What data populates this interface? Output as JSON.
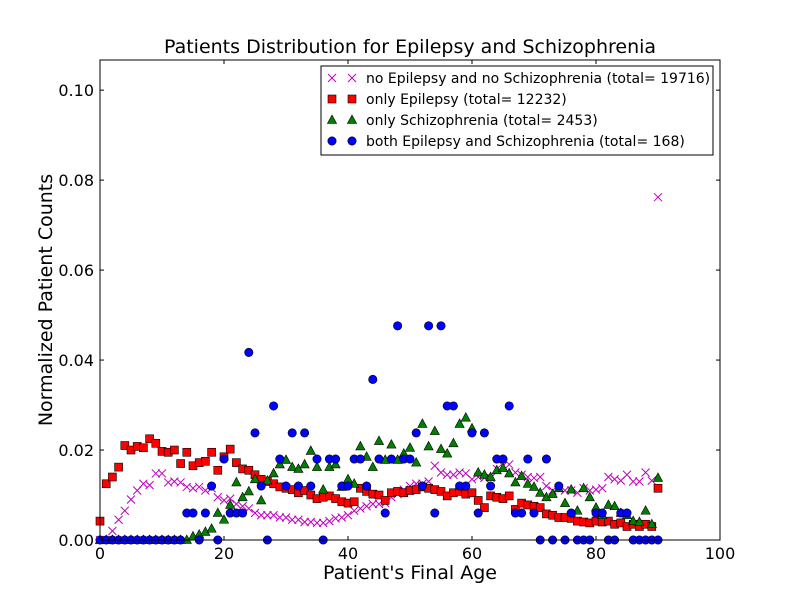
{
  "chart_data": {
    "type": "scatter",
    "title": "Patients Distribution for Epilepsy and Schizophrenia",
    "xlabel": "Patient's Final Age",
    "ylabel": "Normalized Patient Counts",
    "xlim": [
      0,
      100
    ],
    "ylim": [
      0,
      0.1067
    ],
    "xticks": [
      "0",
      "20",
      "40",
      "60",
      "80",
      "100"
    ],
    "yticks": [
      "0.00",
      "0.02",
      "0.04",
      "0.06",
      "0.08",
      "0.10"
    ],
    "legend_position": "top-right",
    "series": [
      {
        "name": "no Epilepsy and no Schizophrenia (total= 19716)",
        "marker": "x",
        "color": "#bf00bf",
        "x": [
          0,
          1,
          2,
          3,
          4,
          5,
          6,
          7,
          8,
          9,
          10,
          11,
          12,
          13,
          14,
          15,
          16,
          17,
          18,
          19,
          20,
          21,
          22,
          23,
          24,
          25,
          26,
          27,
          28,
          29,
          30,
          31,
          32,
          33,
          34,
          35,
          36,
          37,
          38,
          39,
          40,
          41,
          42,
          43,
          44,
          45,
          46,
          47,
          48,
          49,
          50,
          51,
          52,
          53,
          54,
          55,
          56,
          57,
          58,
          59,
          60,
          61,
          62,
          63,
          64,
          65,
          66,
          67,
          68,
          69,
          70,
          71,
          72,
          73,
          74,
          75,
          76,
          77,
          78,
          79,
          80,
          81,
          82,
          83,
          84,
          85,
          86,
          87,
          88,
          89,
          90
        ],
        "y": [
          0.0,
          0.0,
          0.002,
          0.0045,
          0.0065,
          0.009,
          0.011,
          0.0125,
          0.0122,
          0.0148,
          0.0148,
          0.0128,
          0.013,
          0.0128,
          0.0118,
          0.0115,
          0.0118,
          0.011,
          0.0115,
          0.0095,
          0.0088,
          0.0092,
          0.008,
          0.0075,
          0.007,
          0.006,
          0.0055,
          0.0055,
          0.0055,
          0.005,
          0.005,
          0.0045,
          0.0045,
          0.004,
          0.004,
          0.0038,
          0.0038,
          0.0042,
          0.0048,
          0.005,
          0.0055,
          0.0065,
          0.007,
          0.0075,
          0.008,
          0.008,
          0.0082,
          0.0095,
          0.0102,
          0.0112,
          0.012,
          0.0125,
          0.0125,
          0.013,
          0.0165,
          0.015,
          0.0145,
          0.0145,
          0.015,
          0.0148,
          0.0135,
          0.014,
          0.0138,
          0.0138,
          0.0158,
          0.0165,
          0.0168,
          0.015,
          0.0145,
          0.014,
          0.0138,
          0.014,
          0.012,
          0.011,
          0.0115,
          0.011,
          0.011,
          0.0105,
          0.0115,
          0.011,
          0.0112,
          0.0115,
          0.014,
          0.0135,
          0.0132,
          0.0145,
          0.013,
          0.013,
          0.015,
          0.0132,
          0.0762
        ]
      },
      {
        "name": "only Epilepsy (total= 12232)",
        "marker": "square",
        "color": "#ff0000",
        "x": [
          0,
          1,
          2,
          3,
          4,
          5,
          6,
          7,
          8,
          9,
          10,
          11,
          12,
          13,
          14,
          15,
          16,
          17,
          18,
          19,
          20,
          21,
          22,
          23,
          24,
          25,
          26,
          27,
          28,
          29,
          30,
          31,
          32,
          33,
          34,
          35,
          36,
          37,
          38,
          39,
          40,
          41,
          42,
          43,
          44,
          45,
          46,
          47,
          48,
          49,
          50,
          51,
          52,
          53,
          54,
          55,
          56,
          57,
          58,
          59,
          60,
          61,
          62,
          63,
          64,
          65,
          66,
          67,
          68,
          69,
          70,
          71,
          72,
          73,
          74,
          75,
          76,
          77,
          78,
          79,
          80,
          81,
          82,
          83,
          84,
          85,
          86,
          87,
          88,
          89,
          90
        ],
        "y": [
          0.0042,
          0.0125,
          0.014,
          0.0162,
          0.021,
          0.02,
          0.0208,
          0.0205,
          0.0225,
          0.0215,
          0.0197,
          0.0195,
          0.02,
          0.017,
          0.0195,
          0.0165,
          0.0172,
          0.0175,
          0.0195,
          0.0155,
          0.0185,
          0.0202,
          0.0172,
          0.0158,
          0.0155,
          0.0145,
          0.0135,
          0.013,
          0.0125,
          0.0118,
          0.0115,
          0.0112,
          0.0105,
          0.011,
          0.01,
          0.0092,
          0.0095,
          0.0098,
          0.0092,
          0.0085,
          0.0082,
          0.0085,
          0.0115,
          0.0108,
          0.0102,
          0.01,
          0.0088,
          0.0105,
          0.0108,
          0.0105,
          0.011,
          0.0112,
          0.0118,
          0.0115,
          0.0112,
          0.0108,
          0.0098,
          0.0105,
          0.0108,
          0.0102,
          0.0105,
          0.0088,
          0.0072,
          0.0098,
          0.0095,
          0.0092,
          0.0098,
          0.0068,
          0.0082,
          0.0078,
          0.0075,
          0.0072,
          0.0058,
          0.0055,
          0.005,
          0.005,
          0.0048,
          0.0042,
          0.004,
          0.0038,
          0.0042,
          0.004,
          0.0042,
          0.0035,
          0.0038,
          0.003,
          0.0035,
          0.003,
          0.0035,
          0.003,
          0.0115
        ]
      },
      {
        "name": "only Schizophrenia (total= 2453)",
        "marker": "triangle",
        "color": "#007f00",
        "x": [
          0,
          1,
          2,
          3,
          4,
          5,
          6,
          7,
          8,
          9,
          10,
          11,
          12,
          13,
          14,
          15,
          16,
          17,
          18,
          19,
          20,
          21,
          22,
          23,
          24,
          25,
          26,
          27,
          28,
          29,
          30,
          31,
          32,
          33,
          34,
          35,
          36,
          37,
          38,
          39,
          40,
          41,
          42,
          43,
          44,
          45,
          46,
          47,
          48,
          49,
          50,
          51,
          52,
          53,
          54,
          55,
          56,
          57,
          58,
          59,
          60,
          61,
          62,
          63,
          64,
          65,
          66,
          67,
          68,
          69,
          70,
          71,
          72,
          73,
          74,
          75,
          76,
          77,
          78,
          79,
          80,
          81,
          82,
          83,
          84,
          85,
          86,
          87,
          88,
          89,
          90
        ],
        "y": [
          0,
          0,
          0,
          0,
          0,
          0,
          0,
          0,
          0,
          0,
          0,
          0,
          0,
          0,
          0,
          0.0008,
          0.0012,
          0.0018,
          0.0025,
          0.006,
          0.0045,
          0.0078,
          0.0128,
          0.0095,
          0.0108,
          0.0135,
          0.0088,
          0.0132,
          0.0148,
          0.0168,
          0.0178,
          0.0162,
          0.0158,
          0.0168,
          0.0198,
          0.0162,
          0.0112,
          0.0162,
          0.0168,
          0.0118,
          0.0135,
          0.0125,
          0.0208,
          0.0185,
          0.0162,
          0.022,
          0.0178,
          0.0212,
          0.0178,
          0.0192,
          0.0205,
          0.0172,
          0.0258,
          0.0208,
          0.0242,
          0.0202,
          0.0192,
          0.0215,
          0.0258,
          0.0272,
          0.0248,
          0.015,
          0.0145,
          0.014,
          0.0155,
          0.016,
          0.0148,
          0.0128,
          0.0142,
          0.0125,
          0.0118,
          0.0105,
          0.0095,
          0.0102,
          0.0115,
          0.0082,
          0.0112,
          0.0065,
          0.0115,
          0.0095,
          0.0072,
          0.0055,
          0.0078,
          0.0075,
          0.006,
          0.0055,
          0.0042,
          0.004,
          0.0065,
          0.0035,
          0.0138
        ]
      },
      {
        "name": "both Epilepsy and Schizophrenia (total= 168)",
        "marker": "circle",
        "color": "#0000ff",
        "x": [
          0,
          1,
          2,
          3,
          4,
          5,
          6,
          7,
          8,
          9,
          10,
          11,
          12,
          13,
          14,
          15,
          16,
          17,
          18,
          19,
          20,
          21,
          22,
          23,
          24,
          25,
          26,
          27,
          28,
          29,
          30,
          31,
          32,
          33,
          34,
          35,
          36,
          37,
          38,
          39,
          40,
          41,
          42,
          43,
          44,
          45,
          46,
          47,
          48,
          49,
          50,
          51,
          52,
          53,
          54,
          55,
          56,
          57,
          58,
          59,
          60,
          61,
          62,
          63,
          64,
          65,
          66,
          67,
          68,
          69,
          70,
          71,
          72,
          73,
          74,
          75,
          76,
          77,
          78,
          79,
          80,
          81,
          82,
          83,
          84,
          85,
          86,
          87,
          88,
          89,
          90
        ],
        "y": [
          0,
          0,
          0,
          0,
          0,
          0,
          0,
          0,
          0,
          0,
          0,
          0,
          0,
          0,
          0.006,
          0.006,
          0,
          0.006,
          0.012,
          0,
          0.018,
          0.006,
          0.006,
          0.006,
          0.0417,
          0.0238,
          0.012,
          0,
          0.0298,
          0.018,
          0.012,
          0.0238,
          0.012,
          0.0238,
          0.012,
          0.018,
          0,
          0.018,
          0.018,
          0.012,
          0.012,
          0.018,
          0.018,
          0.012,
          0.0357,
          0.018,
          0.006,
          0.018,
          0.0476,
          0.018,
          0.018,
          0.0238,
          0.012,
          0.0476,
          0.006,
          0.0476,
          0.0298,
          0.0298,
          0.012,
          0.012,
          0.0238,
          0.006,
          0.0238,
          0.012,
          0.018,
          0.018,
          0.0298,
          0.006,
          0.006,
          0.018,
          0.006,
          0,
          0.018,
          0,
          0.012,
          0,
          0.006,
          0,
          0,
          0,
          0.006,
          0.006,
          0,
          0,
          0.006,
          0.006,
          0,
          0,
          0,
          0,
          0
        ]
      }
    ]
  }
}
